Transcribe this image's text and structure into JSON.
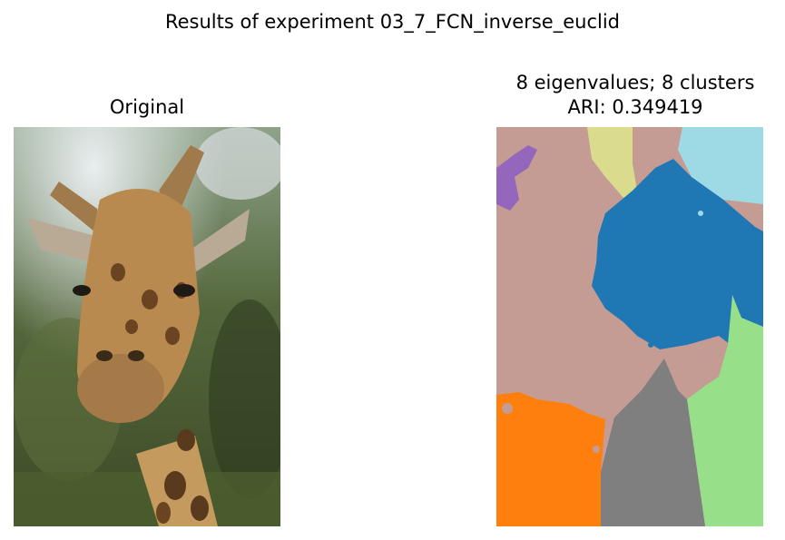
{
  "figure": {
    "suptitle": "Results of experiment 03_7_FCN_inverse_euclid"
  },
  "left_panel": {
    "title": "Original",
    "image_description": "giraffe-photo"
  },
  "right_panel": {
    "title_line1": "8 eigenvalues; 8 clusters",
    "title_line2": "ARI: 0.349419",
    "cluster_colors": [
      "#C49C94",
      "#1F77B4",
      "#FF7F0E",
      "#7F7F7F",
      "#98DF8A",
      "#DBDB8D",
      "#9EDAE5",
      "#9467BD"
    ]
  }
}
